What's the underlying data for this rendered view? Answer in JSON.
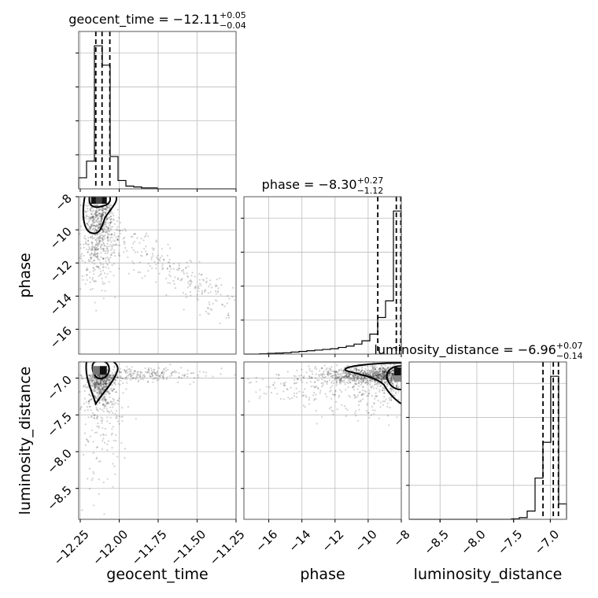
{
  "chart_data": {
    "type": "corner",
    "parameters": [
      "geocent_time",
      "phase",
      "luminosity_distance"
    ],
    "titles": [
      {
        "param": "geocent_time",
        "prefix": "geocent_time = −12.11",
        "plus": "+0.05",
        "minus": "−0.04"
      },
      {
        "param": "phase",
        "prefix": "phase = −8.30",
        "plus": "+0.27",
        "minus": "−1.12"
      },
      {
        "param": "luminosity_distance",
        "prefix": "luminosity_distance = −6.96",
        "plus": "+0.07",
        "minus": "−0.14"
      }
    ],
    "axis_labels": {
      "x": [
        "geocent_time",
        "phase",
        "luminosity_distance"
      ],
      "y": [
        "phase",
        "luminosity_distance"
      ]
    },
    "ranges": {
      "geocent_time": [
        -12.26,
        -11.25
      ],
      "phase": [
        -17.5,
        -8.0
      ],
      "luminosity_distance": [
        -8.92,
        -6.78
      ]
    },
    "ticks": {
      "geocent_time": {
        "values": [
          -12.25,
          -12.0,
          -11.75,
          -11.5,
          -11.25
        ],
        "labels": [
          "−12.25",
          "−12.00",
          "−11.75",
          "−11.50",
          "−11.25"
        ]
      },
      "phase": {
        "values": [
          -16,
          -14,
          -12,
          -10,
          -8
        ],
        "labels": [
          "−16",
          "−14",
          "−12",
          "−10",
          "−8"
        ]
      },
      "luminosity_distance": {
        "values": [
          -8.5,
          -8.0,
          -7.5,
          -7.0
        ],
        "labels": [
          "−8.5",
          "−8.0",
          "−7.5",
          "−7.0"
        ]
      }
    },
    "histograms": [
      {
        "param": "geocent_time",
        "bin_edges": [
          -12.26,
          -12.2095,
          -12.159,
          -12.1085,
          -12.058,
          -12.0075,
          -11.957,
          -11.9065,
          -11.856,
          -11.8055,
          -11.755,
          -11.7045,
          -11.654,
          -11.6035,
          -11.553,
          -11.5025,
          -11.452,
          -11.4015,
          -11.351,
          -11.3005,
          -11.25
        ],
        "counts": [
          12,
          30,
          155,
          134,
          35,
          9,
          3,
          2,
          1,
          1,
          0,
          0,
          0,
          0,
          0,
          0,
          0,
          0,
          0,
          0
        ],
        "quantiles": [
          -12.15,
          -12.11,
          -12.06
        ]
      },
      {
        "param": "phase",
        "bin_edges": [
          -17.5,
          -17.025,
          -16.55,
          -16.075,
          -15.6,
          -15.125,
          -14.65,
          -14.175,
          -13.7,
          -13.225,
          -12.75,
          -12.275,
          -11.8,
          -11.325,
          -10.85,
          -10.375,
          -9.9,
          -9.425,
          -8.95,
          -8.475,
          -8.0
        ],
        "counts": [
          0,
          0,
          0.5,
          1,
          1.5,
          2,
          3,
          4,
          5,
          6,
          7,
          8,
          10,
          12,
          15,
          20,
          30,
          55,
          80,
          215
        ],
        "quantiles": [
          -9.42,
          -8.3,
          -8.03
        ]
      },
      {
        "param": "luminosity_distance",
        "bin_edges": [
          -8.92,
          -8.813,
          -8.706,
          -8.599,
          -8.492,
          -8.385,
          -8.278,
          -8.171,
          -8.064,
          -7.957,
          -7.85,
          -7.743,
          -7.636,
          -7.529,
          -7.422,
          -7.315,
          -7.208,
          -7.101,
          -6.994,
          -6.887,
          -6.78
        ],
        "counts": [
          0,
          0,
          0,
          0,
          0,
          0,
          0,
          0,
          0,
          0,
          0,
          0,
          0,
          1,
          3,
          15,
          75,
          140,
          260,
          28
        ],
        "quantiles": [
          -7.1,
          -6.96,
          -6.89
        ]
      }
    ],
    "scatter_panels": [
      {
        "x": "geocent_time",
        "y": "phase",
        "mode_point": [
          -12.13,
          -8.2
        ]
      },
      {
        "x": "geocent_time",
        "y": "luminosity_distance",
        "mode_point": [
          -12.12,
          -6.9
        ]
      },
      {
        "x": "phase",
        "y": "luminosity_distance",
        "mode_point": [
          -8.05,
          -6.92
        ]
      }
    ],
    "grid": true,
    "legend": "none"
  }
}
